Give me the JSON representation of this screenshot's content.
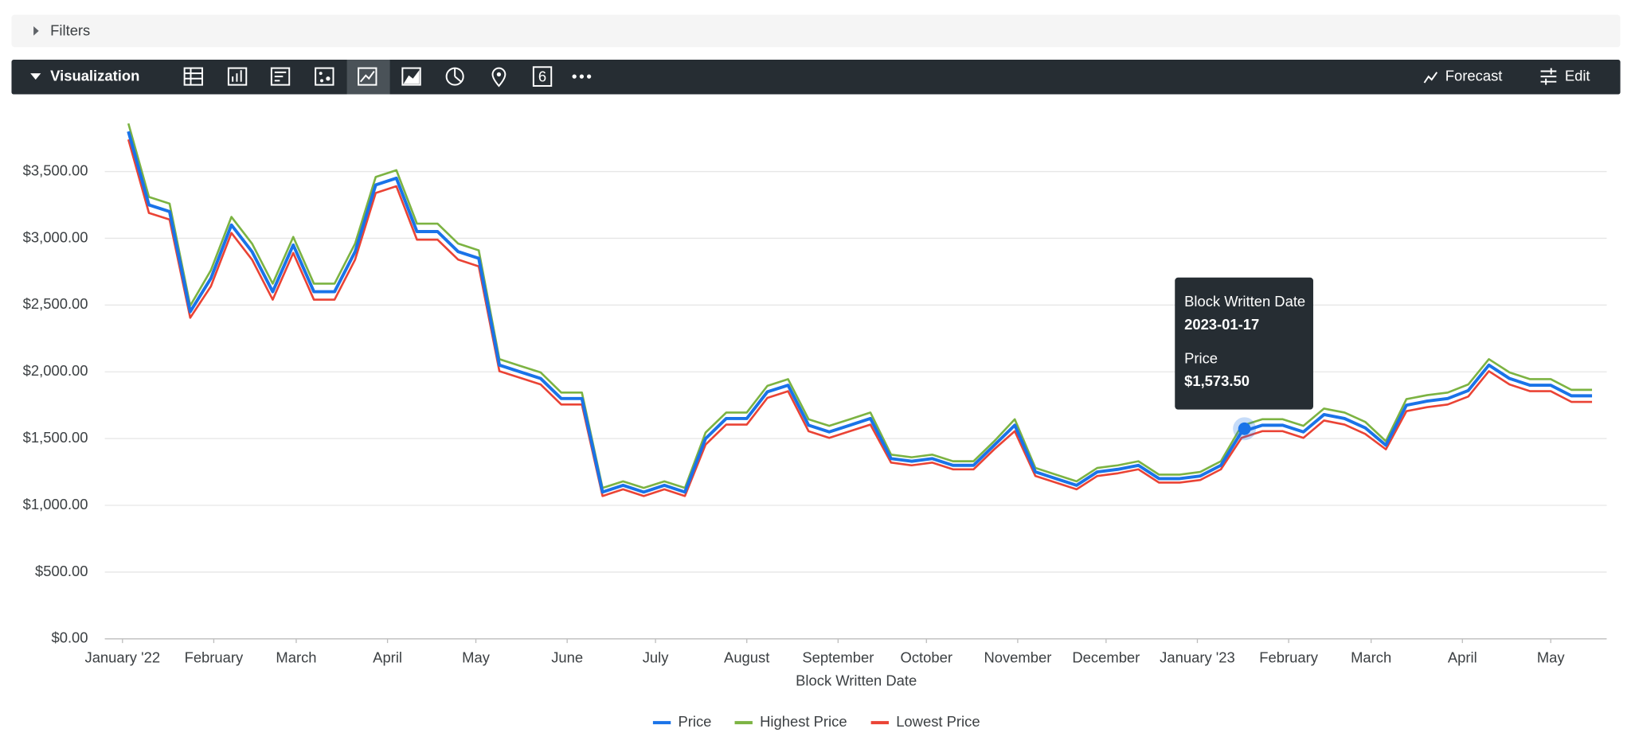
{
  "toolbar": {
    "filters": "Filters",
    "visualization": "Visualization",
    "forecast": "Forecast",
    "edit": "Edit"
  },
  "chart_data": {
    "type": "line",
    "x_label": "Block Written Date",
    "x": [
      "2022-01-03",
      "2022-01-10",
      "2022-01-17",
      "2022-01-24",
      "2022-01-31",
      "2022-02-07",
      "2022-02-14",
      "2022-02-21",
      "2022-02-28",
      "2022-03-07",
      "2022-03-14",
      "2022-03-21",
      "2022-03-28",
      "2022-04-04",
      "2022-04-11",
      "2022-04-18",
      "2022-04-25",
      "2022-05-02",
      "2022-05-09",
      "2022-05-16",
      "2022-05-23",
      "2022-05-30",
      "2022-06-06",
      "2022-06-13",
      "2022-06-20",
      "2022-06-27",
      "2022-07-04",
      "2022-07-11",
      "2022-07-18",
      "2022-07-25",
      "2022-08-01",
      "2022-08-08",
      "2022-08-15",
      "2022-08-22",
      "2022-08-29",
      "2022-09-05",
      "2022-09-12",
      "2022-09-19",
      "2022-09-26",
      "2022-10-03",
      "2022-10-10",
      "2022-10-17",
      "2022-10-24",
      "2022-10-31",
      "2022-11-07",
      "2022-11-14",
      "2022-11-21",
      "2022-11-28",
      "2022-12-05",
      "2022-12-12",
      "2022-12-19",
      "2022-12-26",
      "2023-01-02",
      "2023-01-09",
      "2023-01-16",
      "2023-01-23",
      "2023-01-30",
      "2023-02-06",
      "2023-02-13",
      "2023-02-20",
      "2023-02-27",
      "2023-03-06",
      "2023-03-13",
      "2023-03-20",
      "2023-03-27",
      "2023-04-03",
      "2023-04-10",
      "2023-04-17",
      "2023-04-24",
      "2023-05-01",
      "2023-05-08",
      "2023-05-15"
    ],
    "series": [
      {
        "name": "Price",
        "color": "#1a73e8",
        "values": [
          3800,
          3250,
          3200,
          2450,
          2700,
          3100,
          2900,
          2600,
          2950,
          2600,
          2600,
          2900,
          3400,
          3450,
          3050,
          3050,
          2900,
          2850,
          2050,
          2000,
          1950,
          1800,
          1800,
          1100,
          1150,
          1100,
          1150,
          1100,
          1500,
          1650,
          1650,
          1850,
          1900,
          1600,
          1550,
          1600,
          1650,
          1350,
          1330,
          1350,
          1300,
          1300,
          1450,
          1600,
          1250,
          1200,
          1150,
          1250,
          1270,
          1300,
          1200,
          1200,
          1220,
          1300,
          1550,
          1600,
          1600,
          1550,
          1680,
          1650,
          1580,
          1450,
          1750,
          1780,
          1800,
          1860,
          2050,
          1950,
          1900,
          1900,
          1820,
          1820
        ]
      },
      {
        "name": "Highest Price",
        "color": "#7cb342",
        "values": [
          3860,
          3310,
          3260,
          2495,
          2760,
          3160,
          2960,
          2660,
          3010,
          2660,
          2660,
          2960,
          3460,
          3510,
          3110,
          3110,
          2960,
          2910,
          2095,
          2045,
          1995,
          1845,
          1845,
          1130,
          1180,
          1130,
          1180,
          1130,
          1545,
          1695,
          1695,
          1895,
          1945,
          1645,
          1595,
          1645,
          1695,
          1380,
          1360,
          1380,
          1330,
          1330,
          1480,
          1645,
          1280,
          1230,
          1180,
          1280,
          1300,
          1330,
          1230,
          1230,
          1250,
          1330,
          1595,
          1645,
          1645,
          1595,
          1725,
          1695,
          1625,
          1480,
          1795,
          1825,
          1845,
          1905,
          2095,
          1995,
          1945,
          1945,
          1865,
          1865
        ]
      },
      {
        "name": "Lowest Price",
        "color": "#ea4335",
        "values": [
          3740,
          3190,
          3140,
          2405,
          2640,
          3040,
          2840,
          2540,
          2890,
          2540,
          2540,
          2840,
          3340,
          3390,
          2990,
          2990,
          2840,
          2790,
          2005,
          1955,
          1905,
          1755,
          1755,
          1070,
          1120,
          1070,
          1120,
          1070,
          1455,
          1605,
          1605,
          1805,
          1855,
          1555,
          1505,
          1555,
          1605,
          1320,
          1300,
          1320,
          1270,
          1270,
          1420,
          1555,
          1220,
          1170,
          1120,
          1220,
          1240,
          1270,
          1170,
          1170,
          1190,
          1270,
          1505,
          1555,
          1555,
          1505,
          1635,
          1605,
          1535,
          1420,
          1705,
          1735,
          1755,
          1815,
          2005,
          1905,
          1855,
          1855,
          1775,
          1775
        ]
      }
    ],
    "xlim": [
      "2021-12-26",
      "2023-05-20"
    ],
    "xticks": [
      {
        "value": "2022-01-01",
        "label": "January '22"
      },
      {
        "value": "2022-02-01",
        "label": "February"
      },
      {
        "value": "2022-03-01",
        "label": "March"
      },
      {
        "value": "2022-04-01",
        "label": "April"
      },
      {
        "value": "2022-05-01",
        "label": "May"
      },
      {
        "value": "2022-06-01",
        "label": "June"
      },
      {
        "value": "2022-07-01",
        "label": "July"
      },
      {
        "value": "2022-08-01",
        "label": "August"
      },
      {
        "value": "2022-09-01",
        "label": "September"
      },
      {
        "value": "2022-10-01",
        "label": "October"
      },
      {
        "value": "2022-11-01",
        "label": "November"
      },
      {
        "value": "2022-12-01",
        "label": "December"
      },
      {
        "value": "2023-01-01",
        "label": "January '23"
      },
      {
        "value": "2023-02-01",
        "label": "February"
      },
      {
        "value": "2023-03-01",
        "label": "March"
      },
      {
        "value": "2023-04-01",
        "label": "April"
      },
      {
        "value": "2023-05-01",
        "label": "May"
      }
    ],
    "ylim": [
      0,
      4000
    ],
    "yticks": [
      {
        "value": 0,
        "label": "$0.00"
      },
      {
        "value": 500,
        "label": "$500.00"
      },
      {
        "value": 1000,
        "label": "$1,000.00"
      },
      {
        "value": 1500,
        "label": "$1,500.00"
      },
      {
        "value": 2000,
        "label": "$2,000.00"
      },
      {
        "value": 2500,
        "label": "$2,500.00"
      },
      {
        "value": 3000,
        "label": "$3,000.00"
      },
      {
        "value": 3500,
        "label": "$3,500.00"
      }
    ],
    "grid": true,
    "legend": "bottom",
    "tooltip": {
      "title": "Block Written Date",
      "date": "2023-01-17",
      "series": "Price",
      "value": 1573.5,
      "value_label": "$1,573.50"
    }
  }
}
